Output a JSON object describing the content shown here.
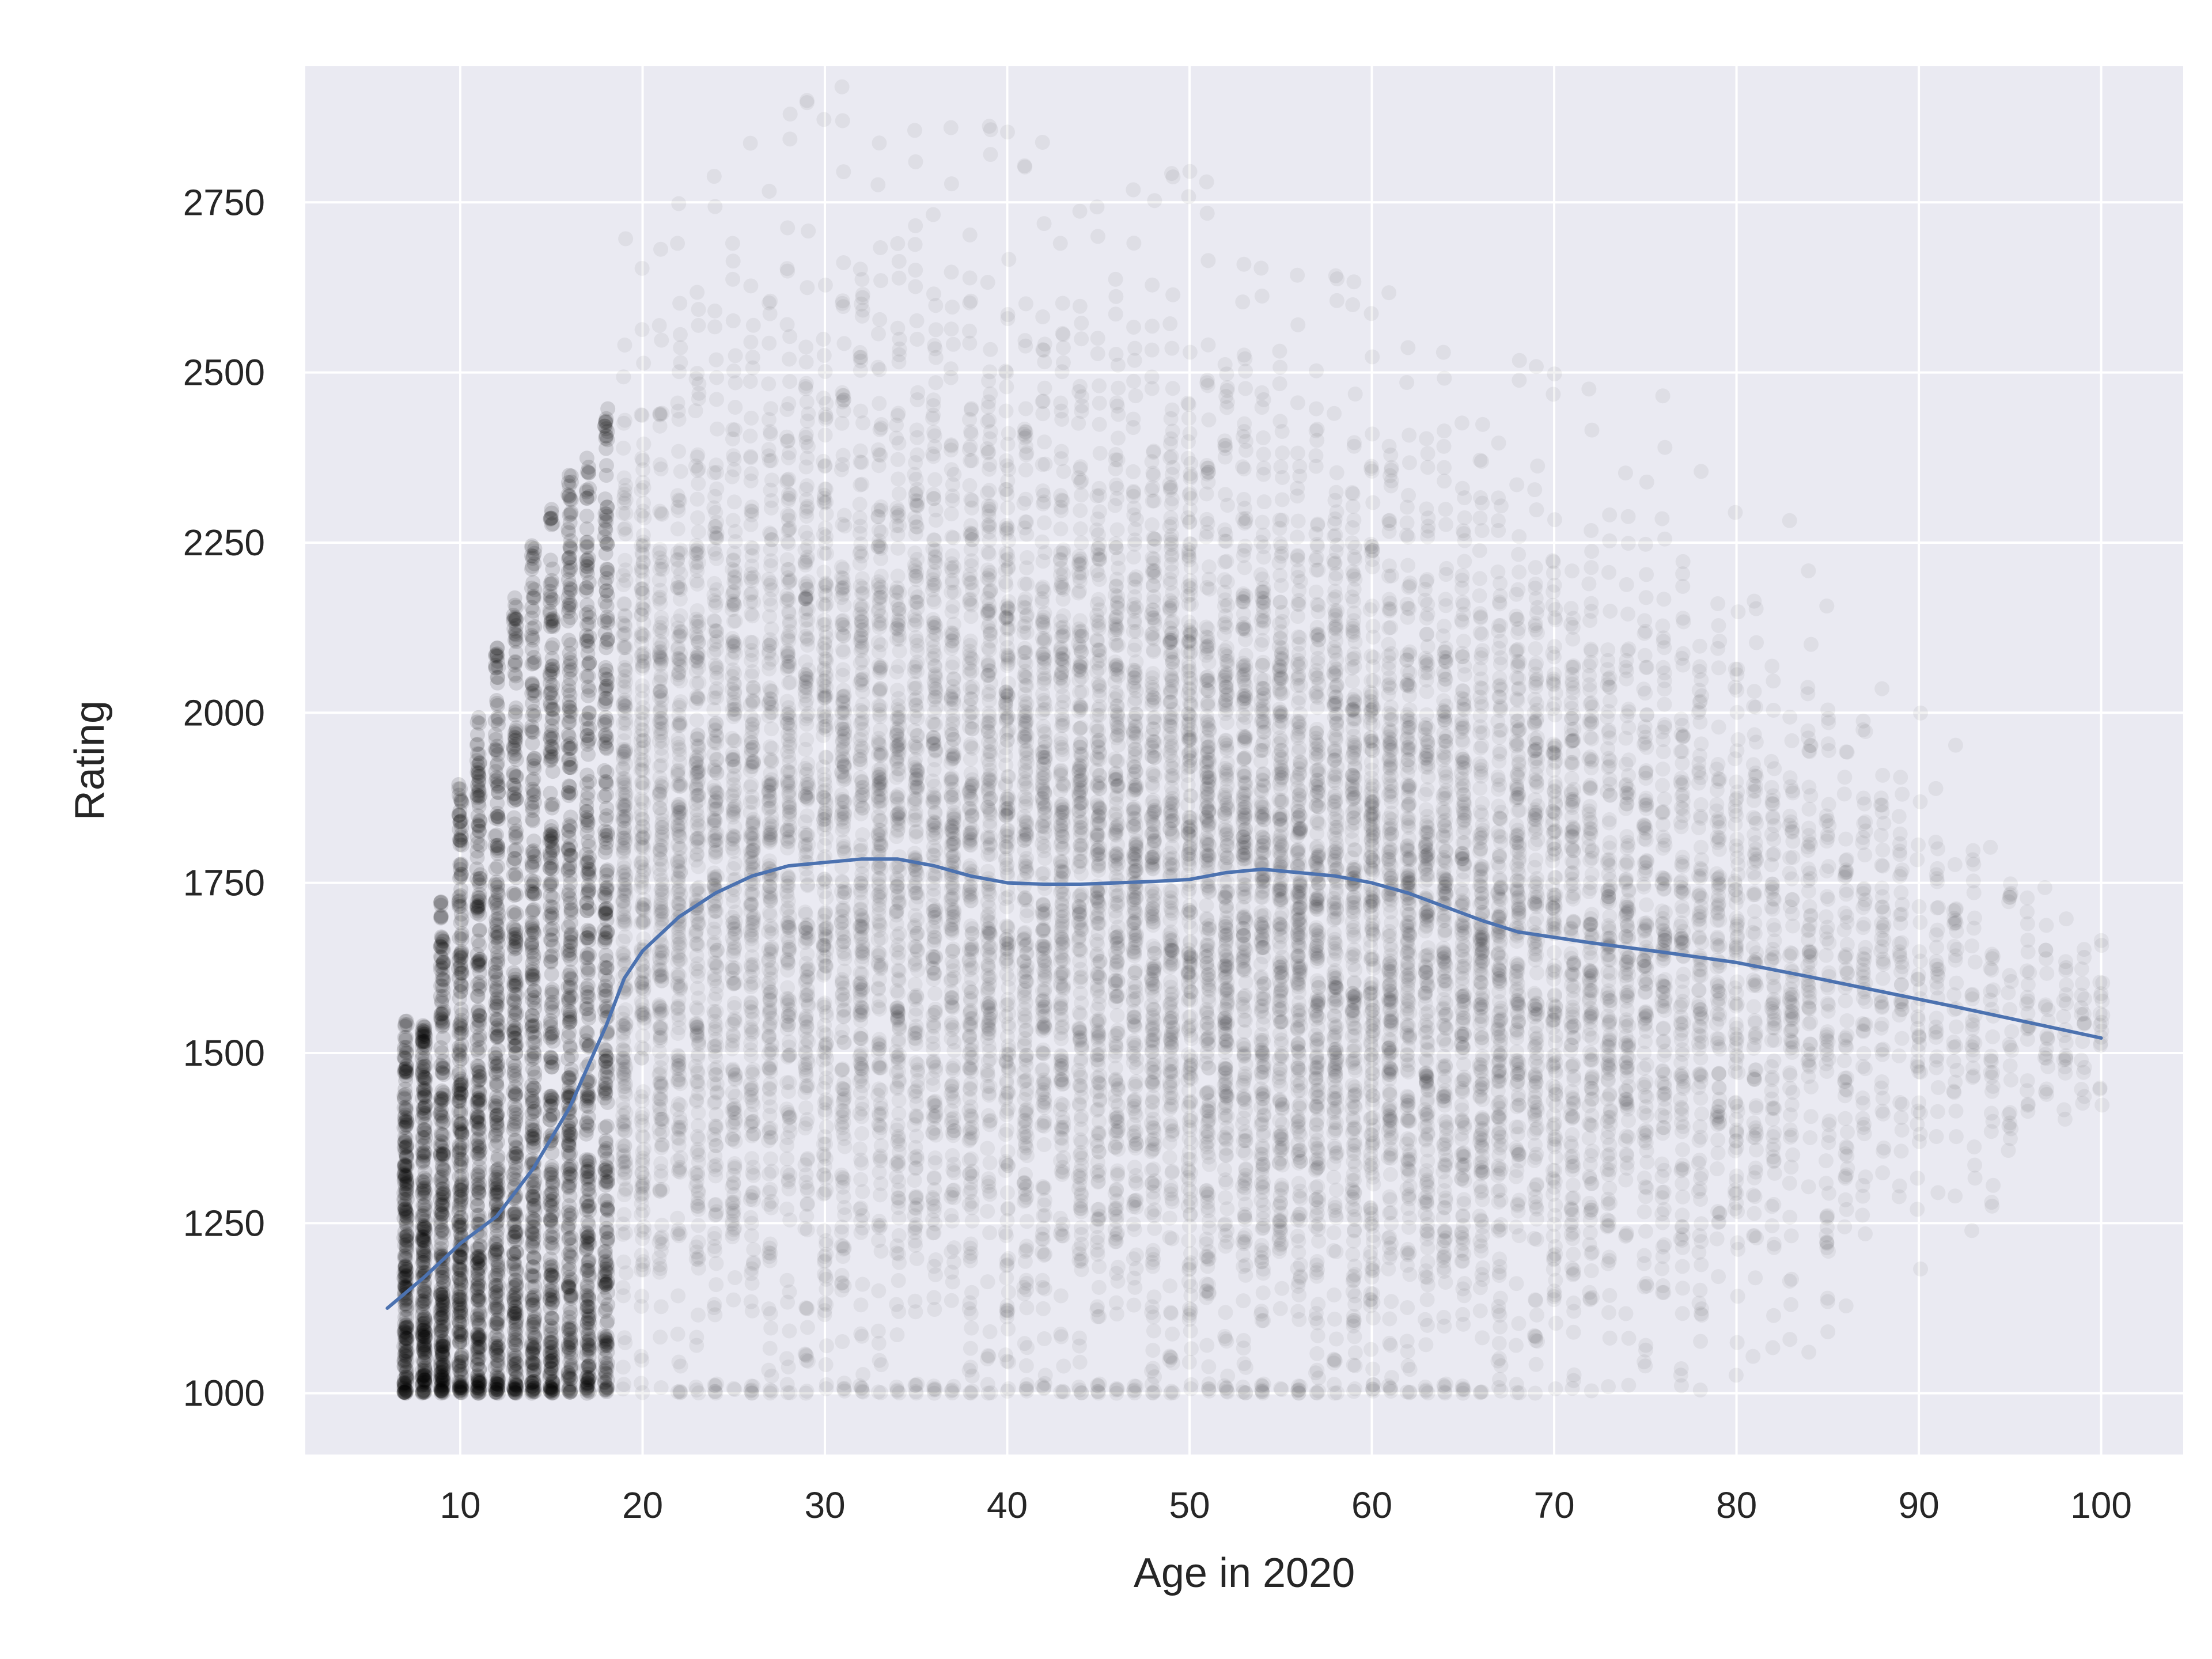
{
  "chart_data": {
    "type": "scatter",
    "title": "",
    "xlabel": "Age in 2020",
    "ylabel": "Rating",
    "xlim": [
      1.5,
      104.5
    ],
    "ylim": [
      910,
      2950
    ],
    "xticks": [
      10,
      20,
      30,
      40,
      50,
      60,
      70,
      80,
      90,
      100
    ],
    "yticks": [
      1000,
      1250,
      1500,
      1750,
      2000,
      2250,
      2500,
      2750
    ],
    "grid": true,
    "colors": {
      "background": "#eaeaf2",
      "grid": "#ffffff",
      "points": "#000000",
      "trend": "#4c72b0"
    },
    "scatter_density": {
      "description_of_mark": "semi-transparent black points, one column per integer age",
      "ages": [
        8,
        10,
        12,
        14,
        16,
        18,
        20,
        25,
        30,
        35,
        40,
        45,
        50,
        55,
        60,
        65,
        70,
        75,
        80,
        85,
        90,
        95,
        100
      ],
      "rating_low": [
        1000,
        1000,
        1000,
        1000,
        1000,
        1000,
        1000,
        1000,
        1000,
        1000,
        1000,
        1000,
        1000,
        1000,
        1000,
        1000,
        1050,
        1050,
        1100,
        1150,
        1250,
        1300,
        1400
      ],
      "rating_high": [
        1550,
        1900,
        2100,
        2250,
        2350,
        2450,
        2550,
        2600,
        2650,
        2650,
        2600,
        2550,
        2550,
        2450,
        2400,
        2350,
        2300,
        2250,
        2200,
        2100,
        1900,
        1800,
        1700
      ],
      "relative_density": [
        0.9,
        1.0,
        1.0,
        1.0,
        1.0,
        0.95,
        0.75,
        0.7,
        0.7,
        0.72,
        0.75,
        0.78,
        0.85,
        0.85,
        0.8,
        0.7,
        0.55,
        0.42,
        0.3,
        0.2,
        0.1,
        0.05,
        0.03
      ]
    },
    "series": [
      {
        "type": "line",
        "x": [
          6,
          8,
          10,
          12,
          14,
          16,
          18,
          19,
          20,
          22,
          24,
          26,
          28,
          30,
          32,
          34,
          36,
          38,
          40,
          42,
          44,
          46,
          48,
          50,
          52,
          54,
          56,
          58,
          60,
          62,
          64,
          66,
          68,
          70,
          72,
          76,
          80,
          84,
          88,
          92,
          96,
          100
        ],
        "y": [
          1125,
          1170,
          1220,
          1260,
          1330,
          1420,
          1540,
          1610,
          1650,
          1700,
          1735,
          1760,
          1775,
          1780,
          1785,
          1785,
          1775,
          1760,
          1750,
          1748,
          1748,
          1750,
          1752,
          1755,
          1765,
          1770,
          1765,
          1760,
          1750,
          1735,
          1715,
          1695,
          1678,
          1670,
          1662,
          1648,
          1633,
          1612,
          1590,
          1568,
          1545,
          1522
        ]
      }
    ]
  }
}
